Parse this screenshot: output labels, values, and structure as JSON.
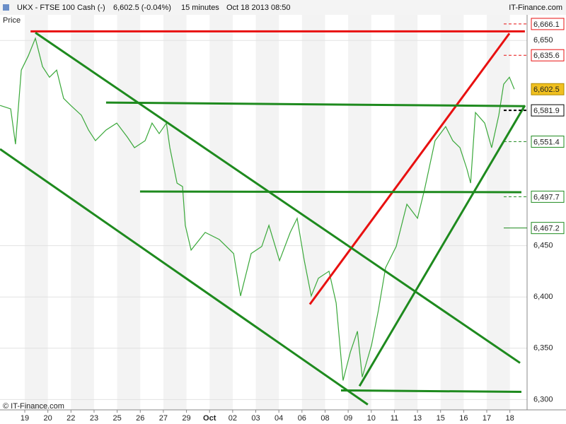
{
  "header": {
    "instrument": "UKX - FTSE 100 Cash (-)",
    "quote": "6,602.5 (-0.04%)",
    "interval": "15 minutes",
    "timestamp": "Oct 18 2013 08:50",
    "brand": "IT-Finance.com"
  },
  "chart_data": {
    "type": "line",
    "y_label": "Price",
    "footer": "© IT-Finance.com",
    "xlim": [
      -1.072,
      21.745
    ],
    "ylim": [
      6292,
      6675
    ],
    "xticks": [
      {
        "value": 0,
        "label": "19"
      },
      {
        "value": 1,
        "label": "20"
      },
      {
        "value": 2,
        "label": "22"
      },
      {
        "value": 3,
        "label": "23"
      },
      {
        "value": 4,
        "label": "25"
      },
      {
        "value": 5,
        "label": "26"
      },
      {
        "value": 6,
        "label": "27"
      },
      {
        "value": 7,
        "label": "29"
      },
      {
        "value": 8,
        "label": "Oct"
      },
      {
        "value": 9,
        "label": "02"
      },
      {
        "value": 10,
        "label": "03"
      },
      {
        "value": 11,
        "label": "04"
      },
      {
        "value": 12,
        "label": "06"
      },
      {
        "value": 13,
        "label": "08"
      },
      {
        "value": 14,
        "label": "09"
      },
      {
        "value": 15,
        "label": "10"
      },
      {
        "value": 16,
        "label": "11"
      },
      {
        "value": 17,
        "label": "13"
      },
      {
        "value": 18,
        "label": "15"
      },
      {
        "value": 19,
        "label": "16"
      },
      {
        "value": 20,
        "label": "17"
      },
      {
        "value": 21,
        "label": "18"
      }
    ],
    "yticks": [
      {
        "value": 6650,
        "label": "6,650"
      },
      {
        "value": 6450,
        "label": "6,450"
      },
      {
        "value": 6400,
        "label": "6,400"
      },
      {
        "value": 6350,
        "label": "6,350"
      },
      {
        "value": 6300,
        "label": "6,300"
      }
    ],
    "grid": true,
    "series": [
      {
        "color": "#3aa83a",
        "x": [
          -1.07,
          -0.61,
          -0.4,
          -0.15,
          0.15,
          0.46,
          0.77,
          1.07,
          1.38,
          1.68,
          1.99,
          2.45,
          2.76,
          3.06,
          3.52,
          3.98,
          4.44,
          4.75,
          5.21,
          5.51,
          5.82,
          6.13,
          6.28,
          6.59,
          6.83,
          6.95,
          7.2,
          7.81,
          8.42,
          9.04,
          9.34,
          9.8,
          10.26,
          10.57,
          11.03,
          11.49,
          11.79,
          12.1,
          12.4,
          12.71,
          13.17,
          13.48,
          13.78,
          14.09,
          14.4,
          14.61,
          15.01,
          15.31,
          15.62,
          16.08,
          16.54,
          17,
          17.3,
          17.76,
          18.22,
          18.53,
          18.84,
          19.14,
          19.3,
          19.51,
          19.91,
          20.21,
          20.52,
          20.73,
          20.98,
          21.19
        ],
        "values": [
          6586.7,
          6583.3,
          6548.9,
          6621.1,
          6634.9,
          6652.1,
          6624.6,
          6614.2,
          6621.1,
          6593.6,
          6586.7,
          6577.1,
          6562.7,
          6552.3,
          6562.7,
          6569.5,
          6555.8,
          6545.5,
          6552.3,
          6569.5,
          6559.2,
          6569.5,
          6545.5,
          6511,
          6507.6,
          6469.8,
          6445.7,
          6462.9,
          6456,
          6442.3,
          6401,
          6442.3,
          6449.2,
          6469.8,
          6435.4,
          6462.9,
          6476.7,
          6435.4,
          6401,
          6418.2,
          6425.1,
          6394.2,
          6318.5,
          6346,
          6366.6,
          6321.9,
          6352.9,
          6387.3,
          6428.5,
          6449.2,
          6490.4,
          6476.7,
          6504.2,
          6552.3,
          6566.1,
          6552.3,
          6545.5,
          6524.8,
          6511,
          6579.8,
          6569.5,
          6545.5,
          6577.1,
          6607.4,
          6614.2,
          6602.5
        ]
      }
    ],
    "trendlines": [
      {
        "color": "#e81010",
        "x": [
          0.25,
          21.65
        ],
        "y": [
          6658.9,
          6658.9
        ]
      },
      {
        "color": "#e81010",
        "x": [
          12.34,
          20.98
        ],
        "y": [
          6392.8,
          6656.9
        ]
      },
      {
        "color": "#1e8a1e",
        "x": [
          3.52,
          21.65
        ],
        "y": [
          6589.5,
          6586
        ]
      },
      {
        "color": "#1e8a1e",
        "x": [
          4.99,
          21.5
        ],
        "y": [
          6502.8,
          6502.1
        ]
      },
      {
        "color": "#1e8a1e",
        "x": [
          13.69,
          21.5
        ],
        "y": [
          6308.9,
          6307.5
        ]
      },
      {
        "color": "#1e8a1e",
        "x": [
          0.46,
          21.44
        ],
        "y": [
          6657.6,
          6335.7
        ]
      },
      {
        "color": "#1e8a1e",
        "x": [
          -1.07,
          14.85
        ],
        "y": [
          6544.1,
          6295.1
        ]
      },
      {
        "color": "#1e8a1e",
        "x": [
          14.49,
          21.65
        ],
        "y": [
          6313.1,
          6586.7
        ]
      }
    ],
    "levels": [
      {
        "value": 6666.1,
        "label": "6,666.1",
        "color": "#e81010",
        "style": "dashed"
      },
      {
        "value": 6635.6,
        "label": "6,635.6",
        "color": "#e81010",
        "style": "dashed"
      },
      {
        "value": 6602.5,
        "label": "6,602.5",
        "color": "#f0c020",
        "style": "box"
      },
      {
        "value": 6581.9,
        "label": "6,581.9",
        "color": "#000000",
        "style": "dashed"
      },
      {
        "value": 6551.4,
        "label": "6,551.4",
        "color": "#1e8a1e",
        "style": "dashed"
      },
      {
        "value": 6497.7,
        "label": "6,497.7",
        "color": "#1e8a1e",
        "style": "dashed"
      },
      {
        "value": 6467.2,
        "label": "6,467.2",
        "color": "#1e8a1e",
        "style": "solid"
      }
    ]
  }
}
